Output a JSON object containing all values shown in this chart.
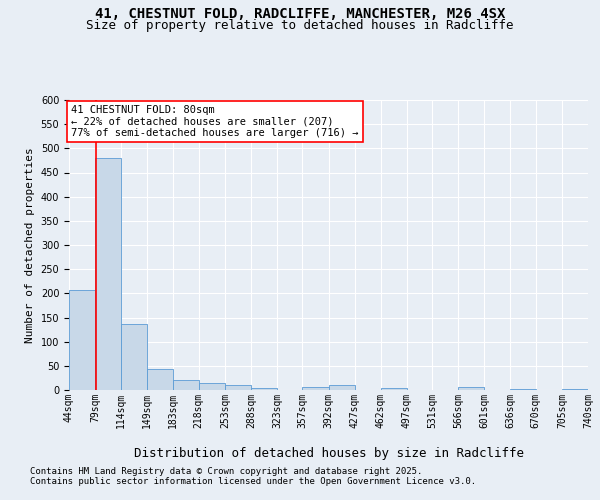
{
  "title1": "41, CHESTNUT FOLD, RADCLIFFE, MANCHESTER, M26 4SX",
  "title2": "Size of property relative to detached houses in Radcliffe",
  "xlabel": "Distribution of detached houses by size in Radcliffe",
  "ylabel": "Number of detached properties",
  "footnote1": "Contains HM Land Registry data © Crown copyright and database right 2025.",
  "footnote2": "Contains public sector information licensed under the Open Government Licence v3.0.",
  "bar_left_edges": [
    44,
    79,
    114,
    149,
    183,
    218,
    253,
    288,
    323,
    357,
    392,
    427,
    462,
    497,
    531,
    566,
    601,
    636,
    670,
    705
  ],
  "bar_widths": [
    35,
    35,
    35,
    34,
    35,
    35,
    35,
    35,
    34,
    35,
    35,
    35,
    35,
    34,
    35,
    35,
    35,
    34,
    35,
    35
  ],
  "bar_heights": [
    207,
    480,
    136,
    44,
    21,
    14,
    11,
    5,
    0,
    6,
    11,
    0,
    5,
    0,
    0,
    7,
    0,
    2,
    0,
    2
  ],
  "bar_color": "#c8d8e8",
  "bar_edge_color": "#5b9bd5",
  "tick_labels": [
    "44sqm",
    "79sqm",
    "114sqm",
    "149sqm",
    "183sqm",
    "218sqm",
    "253sqm",
    "288sqm",
    "323sqm",
    "357sqm",
    "392sqm",
    "427sqm",
    "462sqm",
    "497sqm",
    "531sqm",
    "566sqm",
    "601sqm",
    "636sqm",
    "670sqm",
    "705sqm",
    "740sqm"
  ],
  "red_line_x": 80,
  "annotation_text": "41 CHESTNUT FOLD: 80sqm\n← 22% of detached houses are smaller (207)\n77% of semi-detached houses are larger (716) →",
  "annotation_box_color": "white",
  "annotation_box_edge": "red",
  "ylim": [
    0,
    600
  ],
  "yticks": [
    0,
    50,
    100,
    150,
    200,
    250,
    300,
    350,
    400,
    450,
    500,
    550,
    600
  ],
  "background_color": "#e8eef5",
  "plot_bg_color": "#e8eef5",
  "grid_color": "white",
  "title_fontsize": 10,
  "subtitle_fontsize": 9,
  "axis_label_fontsize": 8,
  "tick_fontsize": 7,
  "annotation_fontsize": 7.5
}
